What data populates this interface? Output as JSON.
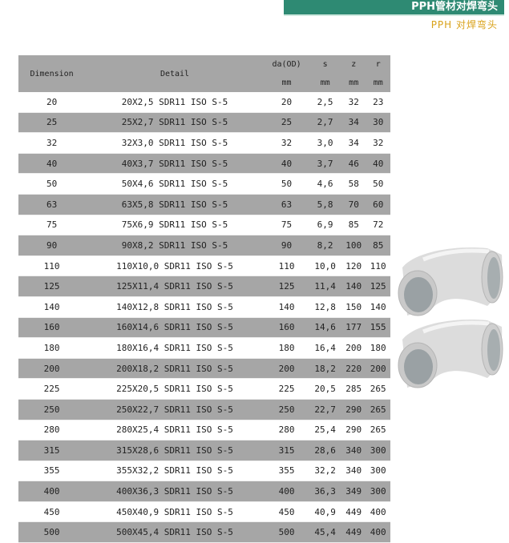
{
  "header": {
    "banner_title": "PPH管材对焊弯头",
    "subtitle": "PPH 对焊弯头"
  },
  "table": {
    "columns": [
      {
        "label": "Dimension",
        "unit": ""
      },
      {
        "label": "Detail",
        "unit": ""
      },
      {
        "label": "da(OD)",
        "unit": "mm"
      },
      {
        "label": "s",
        "unit": "mm"
      },
      {
        "label": "z",
        "unit": "mm"
      },
      {
        "label": "r",
        "unit": "mm"
      }
    ],
    "rows": [
      [
        "20",
        "20X2,5 SDR11 ISO S-5",
        "20",
        "2,5",
        "32",
        "23"
      ],
      [
        "25",
        "25X2,7 SDR11 ISO S-5",
        "25",
        "2,7",
        "34",
        "30"
      ],
      [
        "32",
        "32X3,0 SDR11 ISO S-5",
        "32",
        "3,0",
        "34",
        "32"
      ],
      [
        "40",
        "40X3,7 SDR11 ISO S-5",
        "40",
        "3,7",
        "46",
        "40"
      ],
      [
        "50",
        "50X4,6 SDR11 ISO S-5",
        "50",
        "4,6",
        "58",
        "50"
      ],
      [
        "63",
        "63X5,8 SDR11 ISO S-5",
        "63",
        "5,8",
        "70",
        "60"
      ],
      [
        "75",
        "75X6,9 SDR11 ISO S-5",
        "75",
        "6,9",
        "85",
        "72"
      ],
      [
        "90",
        "90X8,2 SDR11 ISO S-5",
        "90",
        "8,2",
        "100",
        "85"
      ],
      [
        "110",
        "110X10,0 SDR11 ISO S-5",
        "110",
        "10,0",
        "120",
        "110"
      ],
      [
        "125",
        "125X11,4 SDR11 ISO S-5",
        "125",
        "11,4",
        "140",
        "125"
      ],
      [
        "140",
        "140X12,8 SDR11 ISO S-5",
        "140",
        "12,8",
        "150",
        "140"
      ],
      [
        "160",
        "160X14,6 SDR11 ISO S-5",
        "160",
        "14,6",
        "177",
        "155"
      ],
      [
        "180",
        "180X16,4 SDR11 ISO S-5",
        "180",
        "16,4",
        "200",
        "180"
      ],
      [
        "200",
        "200X18,2 SDR11 ISO S-5",
        "200",
        "18,2",
        "220",
        "200"
      ],
      [
        "225",
        "225X20,5 SDR11 ISO S-5",
        "225",
        "20,5",
        "285",
        "265"
      ],
      [
        "250",
        "250X22,7 SDR11 ISO S-5",
        "250",
        "22,7",
        "290",
        "265"
      ],
      [
        "280",
        "280X25,4 SDR11 ISO S-5",
        "280",
        "25,4",
        "290",
        "265"
      ],
      [
        "315",
        "315X28,6 SDR11 ISO S-5",
        "315",
        "28,6",
        "340",
        "300"
      ],
      [
        "355",
        "355X32,2 SDR11 ISO S-5",
        "355",
        "32,2",
        "340",
        "300"
      ],
      [
        "400",
        "400X36,3 SDR11 ISO S-5",
        "400",
        "36,3",
        "349",
        "300"
      ],
      [
        "450",
        "450X40,9 SDR11 ISO S-5",
        "450",
        "40,9",
        "449",
        "400"
      ],
      [
        "500",
        "500X45,4 SDR11 ISO S-5",
        "500",
        "45,4",
        "449",
        "400"
      ]
    ]
  },
  "colors": {
    "banner": "#2e8a73",
    "subtitle": "#d9a21a",
    "stripe": "#a6a6a6"
  },
  "images": {
    "product": "pph-elbow-fitting"
  }
}
